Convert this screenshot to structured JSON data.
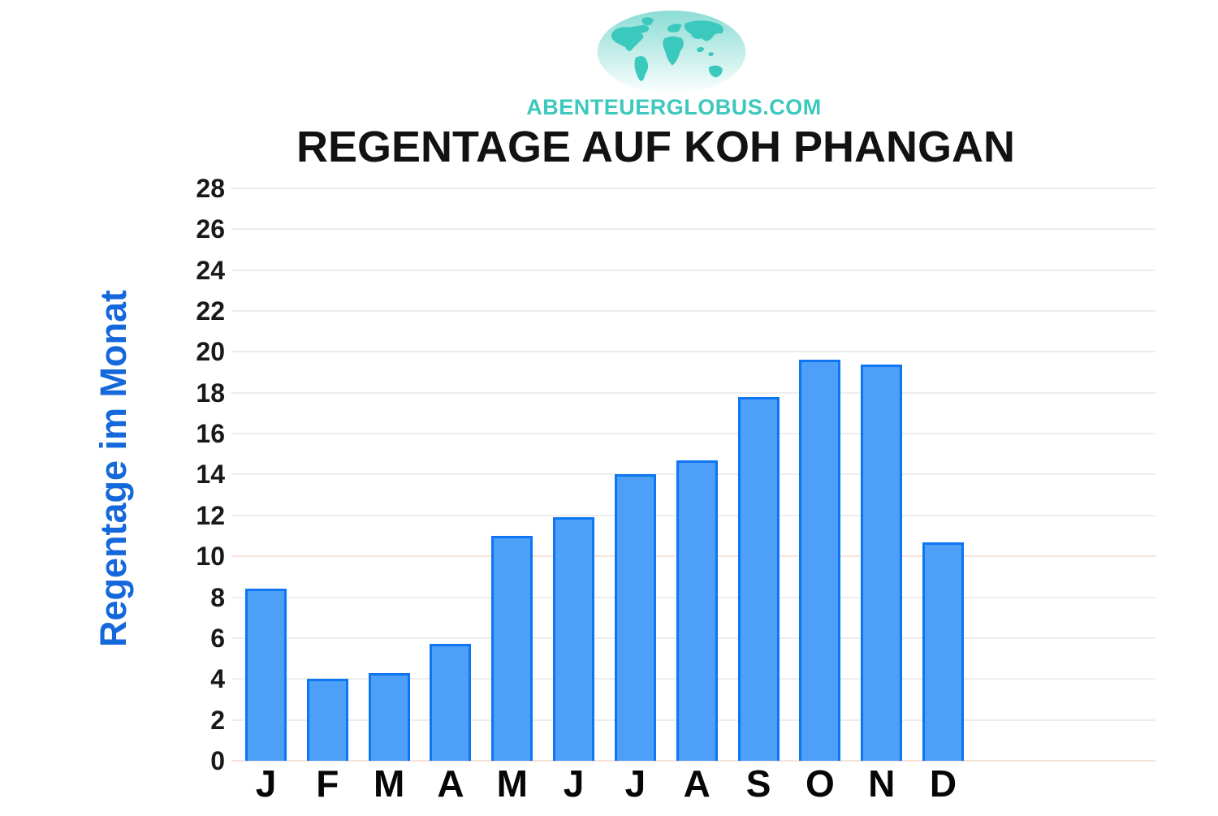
{
  "logo": {
    "site": "ABENTEUERGLOBUS.COM",
    "color": "#3bc8bd"
  },
  "title": "REGENTAGE AUF KOH PHANGAN",
  "chart_data": {
    "type": "bar",
    "title": "REGENTAGE AUF KOH PHANGAN",
    "categories": [
      "J",
      "F",
      "M",
      "A",
      "M",
      "J",
      "J",
      "A",
      "S",
      "O",
      "N",
      "D"
    ],
    "values": [
      8.4,
      4.0,
      4.3,
      5.7,
      11.0,
      11.9,
      14.0,
      14.7,
      17.8,
      19.6,
      19.4,
      10.7
    ],
    "xlabel": "",
    "ylabel": "Regentage im Monat",
    "ylabel_color": "#1568db",
    "ylim": [
      0,
      28
    ],
    "ytick_step": 2,
    "yticks": [
      0,
      2,
      4,
      6,
      8,
      10,
      12,
      14,
      16,
      18,
      20,
      22,
      24,
      26,
      28
    ],
    "grid": true,
    "legend": false,
    "bar_fill": "#4d9ff8",
    "bar_border": "#0e76f1",
    "gridline_color": "#ededed",
    "gridline_accent_color": "#f7e2da",
    "accent_gridlines_at": [
      0,
      10
    ]
  }
}
